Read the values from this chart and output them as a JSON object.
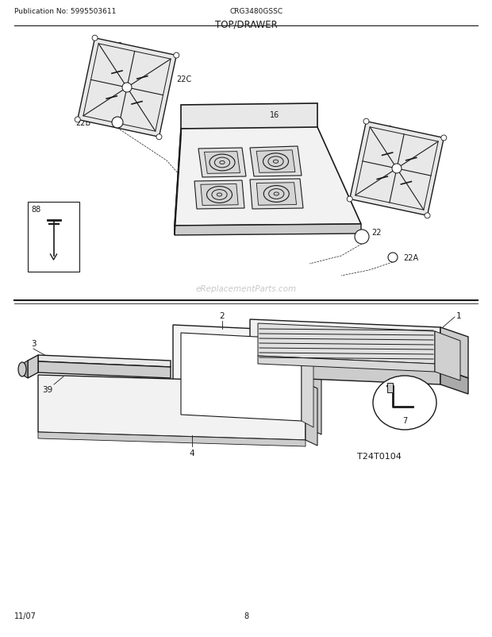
{
  "title": "TOP/DRAWER",
  "pub_no": "Publication No: 5995503611",
  "model": "CRG3480GSSC",
  "date": "11/07",
  "page": "8",
  "diagram_id": "T24T0104",
  "watermark": "eReplacementParts.com",
  "bg_color": "#ffffff",
  "line_color": "#1a1a1a",
  "gray_light": "#e8e8e8",
  "gray_mid": "#cccccc",
  "gray_dark": "#aaaaaa"
}
